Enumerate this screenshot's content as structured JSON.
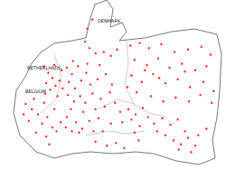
{
  "chart_data": {
    "type": "scatter",
    "annotations": [
      "DENMARK",
      "NETHERLANDS",
      "BELGIUM"
    ],
    "color": "#ff0000",
    "marker": "circle",
    "tick_labels": false,
    "grid": false,
    "xlim": [
      2.5,
      24.5
    ],
    "ylim": [
      45,
      58
    ],
    "x": [
      6.8,
      7.2,
      7.6,
      7.0,
      7.9,
      8.3,
      7.4,
      6.9,
      8.1,
      8.5,
      7.8,
      8.6,
      5.0,
      5.6,
      6.2,
      5.3,
      6.6,
      7.1,
      7.6,
      6.0,
      7.0,
      8.0,
      8.4,
      7.8,
      6.8,
      5.8,
      4.8,
      7.3,
      9.0,
      9.5,
      10.1,
      9.2,
      9.8,
      10.4,
      10.9,
      11.3,
      9.1,
      9.7,
      10.3,
      10.8,
      11.5,
      12.0,
      12.3,
      11.8,
      10.6,
      9.4,
      9.0,
      9.9,
      10.5,
      11.2,
      12.1,
      12.7,
      13.2,
      12.8,
      13.4,
      13.7,
      11.6,
      10.2,
      12.5,
      13.3,
      8.9,
      9.5,
      11.0,
      12.2,
      9.6,
      11.2,
      11.8,
      12.6,
      13.3,
      10.8,
      13.9,
      11.0,
      11.5,
      15.2,
      16.1,
      17.0,
      18.2,
      19.5,
      20.8,
      22.1,
      23.0,
      15.6,
      16.8,
      17.9,
      19.0,
      20.2,
      21.5,
      22.6,
      15.3,
      16.3,
      17.4,
      18.6,
      19.8,
      21.0,
      22.3,
      23.3,
      15.8,
      17.2,
      18.4,
      19.6,
      20.9,
      22.0,
      23.1,
      16.6,
      18.0,
      20.5,
      14.9,
      15.0,
      15.7,
      16.4,
      15.3,
      16.9,
      17.5,
      18.3,
      19.1,
      19.8,
      16.1,
      17.8,
      18.6,
      15.6,
      14.4,
      14.2,
      19.4,
      20.1,
      20.8,
      21.5,
      19.9,
      21.1,
      20.5,
      21.8,
      22.6,
      13.8,
      14.6,
      12.9,
      16.0,
      11.8
    ],
    "y": [
      52.9,
      52.4,
      52.0,
      51.6,
      51.4,
      51.8,
      51.1,
      50.8,
      50.6,
      52.6,
      53.0,
      51.2,
      50.0,
      49.6,
      49.2,
      48.7,
      48.5,
      49.0,
      48.2,
      47.8,
      47.5,
      47.9,
      48.6,
      49.6,
      50.1,
      50.4,
      49.2,
      46.9,
      52.8,
      52.3,
      52.9,
      51.7,
      51.2,
      51.8,
      52.4,
      51.5,
      50.7,
      50.2,
      50.6,
      50.1,
      50.8,
      51.9,
      50.4,
      49.6,
      49.4,
      49.6,
      49.0,
      48.6,
      48.1,
      48.7,
      48.9,
      49.8,
      50.9,
      52.3,
      51.5,
      50.1,
      47.9,
      47.8,
      47.9,
      48.5,
      48.2,
      47.9,
      53.1,
      53.0,
      53.3,
      54.3,
      53.9,
      54.0,
      53.7,
      54.8,
      54.2,
      55.8,
      56.5,
      54.5,
      54.7,
      54.3,
      54.6,
      54.0,
      54.2,
      54.4,
      53.8,
      53.4,
      53.0,
      53.5,
      52.8,
      53.1,
      52.6,
      52.9,
      52.2,
      51.7,
      52.3,
      51.6,
      51.9,
      51.3,
      51.7,
      51.0,
      50.9,
      50.6,
      50.2,
      50.5,
      50.2,
      50.7,
      50.1,
      52.6,
      52.0,
      52.5,
      51.3,
      49.6,
      49.2,
      49.7,
      48.8,
      49.0,
      48.5,
      48.9,
      48.4,
      48.8,
      48.3,
      47.9,
      47.6,
      47.8,
      48.6,
      49.4,
      47.2,
      46.9,
      47.4,
      46.8,
      46.5,
      46.3,
      47.9,
      47.6,
      48.1,
      47.0,
      46.6,
      46.8,
      47.2,
      47.1
    ]
  }
}
